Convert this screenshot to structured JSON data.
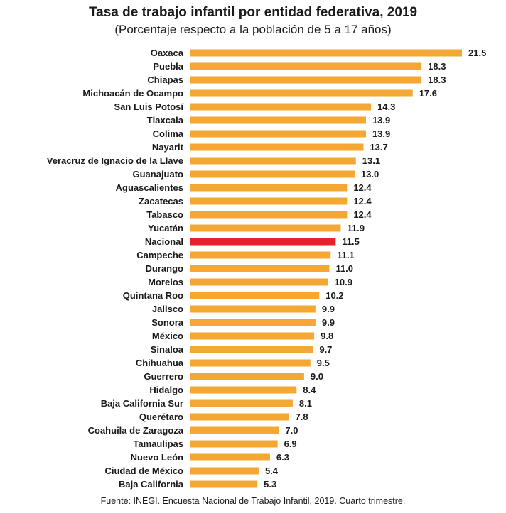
{
  "title": "Tasa de trabajo infantil por entidad federativa, 2019",
  "subtitle": "(Porcentaje respecto a la población de 5 a 17 años)",
  "source": "Fuente: INEGI. Encuesta Nacional de Trabajo Infantil, 2019. Cuarto trimestre.",
  "colors": {
    "bar": "#F5A733",
    "highlight": "#E8202A",
    "text": "#1a1a1a"
  },
  "chart_data": {
    "type": "bar",
    "orientation": "horizontal",
    "title": "Tasa de trabajo infantil por entidad federativa, 2019",
    "subtitle": "(Porcentaje respecto a la población de 5 a 17 años)",
    "xlabel": "",
    "ylabel": "",
    "xlim": [
      0,
      21.5
    ],
    "grid": false,
    "legend": "none",
    "highlight_category": "Nacional",
    "categories": [
      "Oaxaca",
      "Puebla",
      "Chiapas",
      "Michoacán de Ocampo",
      "San Luis Potosí",
      "Tlaxcala",
      "Colima",
      "Nayarit",
      "Veracruz de Ignacio de la Llave",
      "Guanajuato",
      "Aguascalientes",
      "Zacatecas",
      "Tabasco",
      "Yucatán",
      "Nacional",
      "Campeche",
      "Durango",
      "Morelos",
      "Quintana Roo",
      "Jalisco",
      "Sonora",
      "México",
      "Sinaloa",
      "Chihuahua",
      "Guerrero",
      "Hidalgo",
      "Baja California Sur",
      "Querétaro",
      "Coahuila de Zaragoza",
      "Tamaulipas",
      "Nuevo León",
      "Ciudad de México",
      "Baja California"
    ],
    "values": [
      21.5,
      18.3,
      18.3,
      17.6,
      14.3,
      13.9,
      13.9,
      13.7,
      13.1,
      13.0,
      12.4,
      12.4,
      12.4,
      11.9,
      11.5,
      11.1,
      11.0,
      10.9,
      10.2,
      9.9,
      9.9,
      9.8,
      9.7,
      9.5,
      9.0,
      8.4,
      8.1,
      7.8,
      7.0,
      6.9,
      6.3,
      5.4,
      5.3
    ],
    "value_labels": [
      "21.5",
      "18.3",
      "18.3",
      "17.6",
      "14.3",
      "13.9",
      "13.9",
      "13.7",
      "13.1",
      "13.0",
      "12.4",
      "12.4",
      "12.4",
      "11.9",
      "11.5",
      "11.1",
      "11.0",
      "10.9",
      "10.2",
      "9.9",
      "9.9",
      "9.8",
      "9.7",
      "9.5",
      "9.0",
      "8.4",
      "8.1",
      "7.8",
      "7.0",
      "6.9",
      "6.3",
      "5.4",
      "5.3"
    ]
  }
}
